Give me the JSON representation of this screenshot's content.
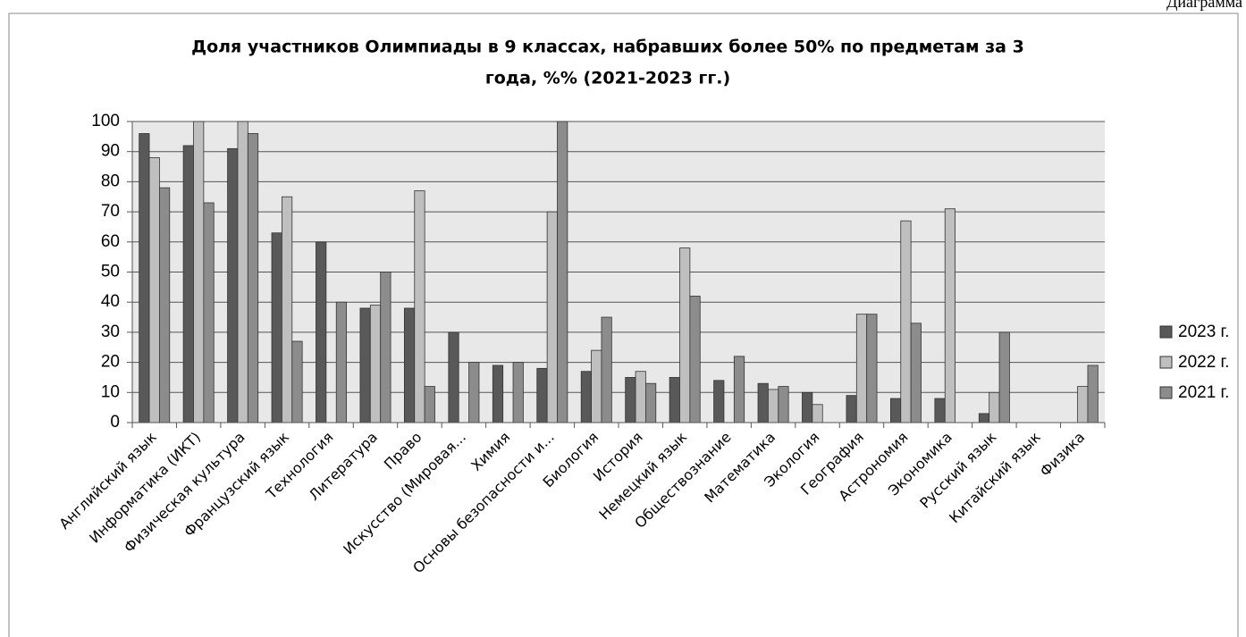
{
  "corner_label": "Диаграмма",
  "chart_data": {
    "type": "bar",
    "title": [
      "Доля участников Олимпиады в 9 классах, набравших более 50%  по предметам за 3",
      "года, %% (2021-2023 гг.)"
    ],
    "categories": [
      "Английский язык",
      "Информатика (ИКТ)",
      "Физическая культура",
      "Французский язык",
      "Технология",
      "Литература",
      "Право",
      "Искусство (Мировая...",
      "Химия",
      "Основы безопасности и...",
      "Биология",
      "История",
      "Немецкий язык",
      "Обществознание",
      "Математика",
      "Экология",
      "География",
      "Астрономия",
      "Экономика",
      "Русский язык",
      "Китайский язык",
      "Физика"
    ],
    "series": [
      {
        "name": "2023 г.",
        "color": "#595959",
        "values": [
          96,
          92,
          91,
          63,
          60,
          38,
          38,
          30,
          19,
          18,
          17,
          15,
          15,
          14,
          13,
          10,
          9,
          8,
          8,
          3,
          0,
          0
        ]
      },
      {
        "name": "2022 г.",
        "color": "#bfbfbf",
        "values": [
          88,
          100,
          100,
          75,
          0,
          39,
          77,
          0,
          0,
          70,
          24,
          17,
          58,
          0,
          11,
          6,
          36,
          67,
          71,
          10,
          0,
          12
        ]
      },
      {
        "name": "2021 г.",
        "color": "#8c8c8c",
        "values": [
          78,
          73,
          96,
          27,
          40,
          50,
          12,
          20,
          20,
          100,
          35,
          13,
          42,
          22,
          12,
          0,
          36,
          33,
          0,
          30,
          0,
          19
        ]
      }
    ],
    "ylim": [
      0,
      100
    ],
    "yticks": [
      0,
      10,
      20,
      30,
      40,
      50,
      60,
      70,
      80,
      90,
      100
    ],
    "grid": true,
    "legend": "right"
  }
}
